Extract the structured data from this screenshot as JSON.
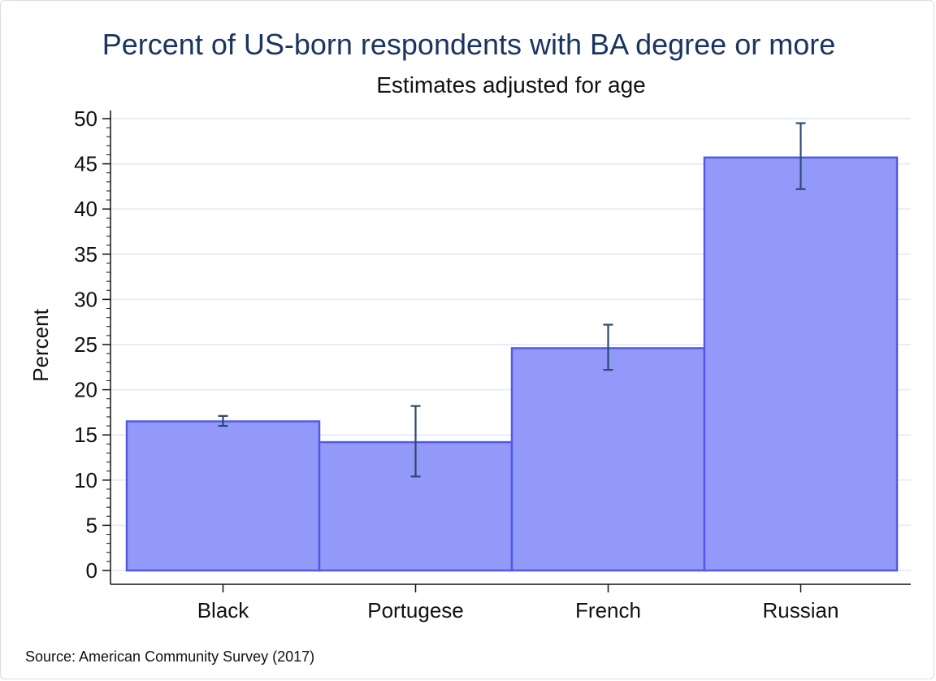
{
  "chart_data": {
    "type": "bar",
    "title": "Percent of US-born respondents with BA degree or more",
    "subtitle": "Estimates adjusted for age",
    "ylabel": "Percent",
    "xlabel": "",
    "categories": [
      "Black",
      "Portugese",
      "French",
      "Russian"
    ],
    "values": [
      16.5,
      14.2,
      24.6,
      45.7
    ],
    "error_bars": {
      "lower": [
        16.0,
        10.4,
        22.2,
        42.2
      ],
      "upper": [
        17.1,
        18.2,
        27.2,
        49.5
      ]
    },
    "ylim": [
      0,
      50
    ],
    "yticks": [
      0,
      5,
      10,
      15,
      20,
      25,
      30,
      35,
      40,
      45,
      50
    ],
    "grid": true,
    "legend": "none",
    "note": "Source: American Community Survey (2017)",
    "colors": {
      "bar_fill": "#9399f9",
      "bar_stroke": "#4f5be8",
      "error_bar": "#2c4a6e",
      "grid": "#e6edf4",
      "title": "#1a3560",
      "axis": "#111111"
    }
  }
}
